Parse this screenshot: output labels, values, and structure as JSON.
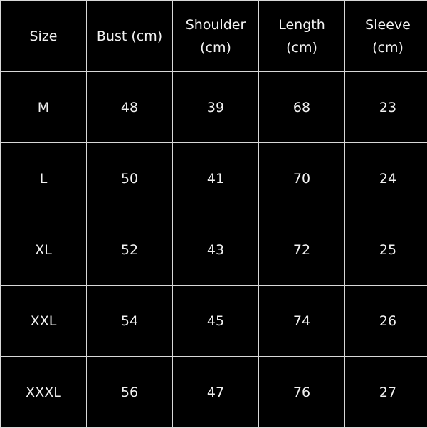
{
  "table": {
    "headers": [
      [
        "Size"
      ],
      [
        "Bust (cm)"
      ],
      [
        "Shoulder",
        "(cm)"
      ],
      [
        "Length",
        "(cm)"
      ],
      [
        "Sleeve",
        "(cm)"
      ]
    ],
    "rows": [
      [
        "M",
        "48",
        "39",
        "68",
        "23"
      ],
      [
        "L",
        "50",
        "41",
        "70",
        "24"
      ],
      [
        "XL",
        "52",
        "43",
        "72",
        "25"
      ],
      [
        "XXL",
        "54",
        "45",
        "74",
        "26"
      ],
      [
        "XXXL",
        "56",
        "47",
        "76",
        "27"
      ]
    ]
  },
  "colors": {
    "background": "#000000",
    "text": "#f2f2f2",
    "grid": "#d8d8d8"
  }
}
